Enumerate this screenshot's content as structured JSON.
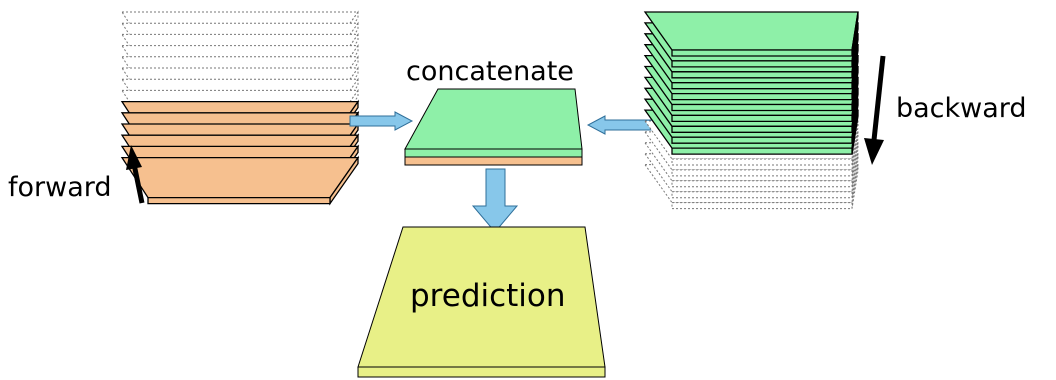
{
  "labels": {
    "concatenate": "concatenate",
    "forward": "forward",
    "backward": "backward",
    "prediction": "prediction"
  },
  "colors": {
    "forward_fill": "#f6c08f",
    "backward_fill": "#8ef0a8",
    "concat_top": "#8ef0a8",
    "concat_bottom": "#f6c08f",
    "prediction_fill": "#e8f087",
    "arrow_fill": "#87c7ea",
    "empty_stroke": "#777777",
    "outline": "#000000"
  }
}
